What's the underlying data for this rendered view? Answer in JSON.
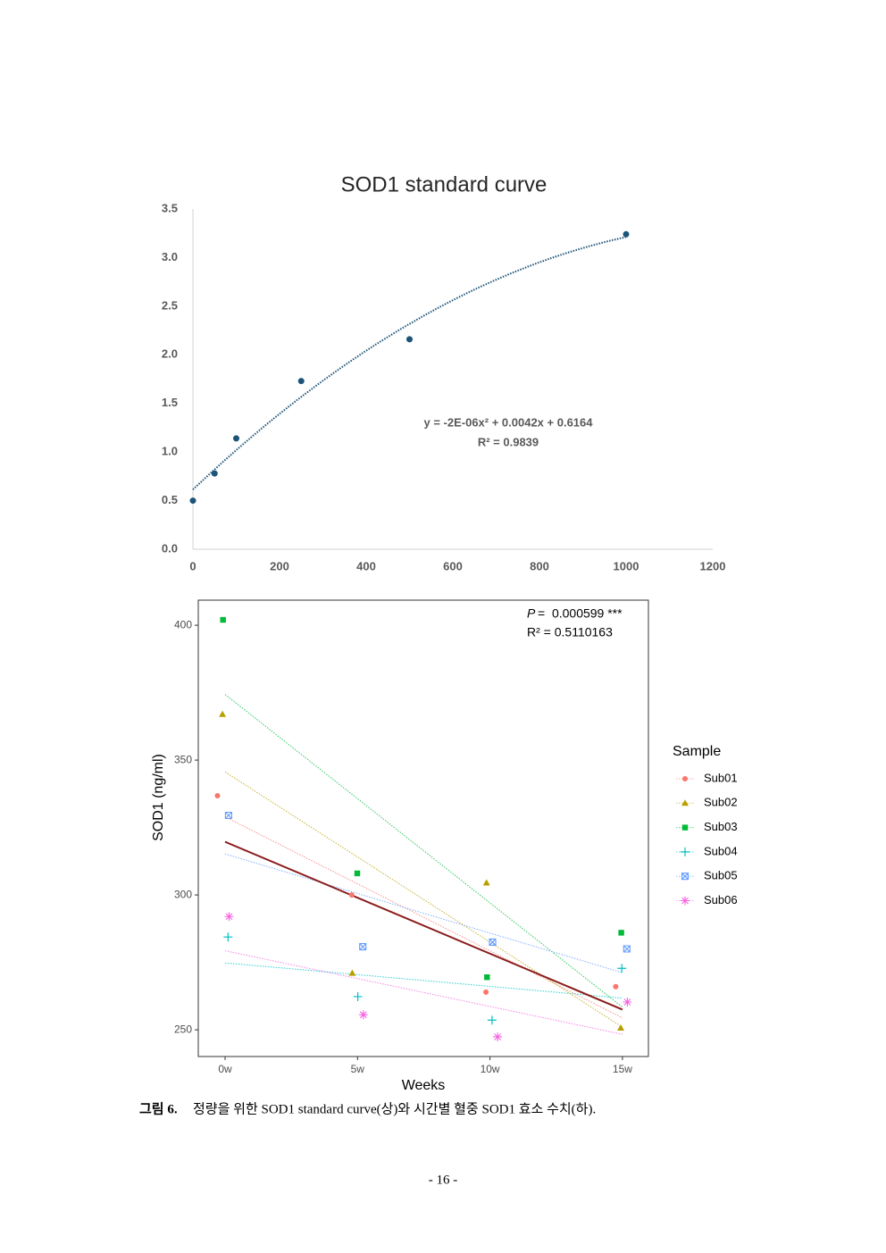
{
  "chart_data": [
    {
      "type": "scatter",
      "title": "SOD1 standard curve",
      "x": [
        0,
        50,
        100,
        250,
        500,
        1000
      ],
      "values": [
        0.5,
        0.78,
        1.14,
        1.73,
        2.16,
        3.24
      ],
      "color": "#1c5478",
      "trendline": {
        "type": "polynomial",
        "order": 2
      },
      "xlim": [
        0,
        1200
      ],
      "xticks": [
        0,
        200,
        400,
        600,
        800,
        1000,
        1200
      ],
      "ylim": [
        0,
        3.5
      ],
      "yticks": [
        {
          "value": 0,
          "label": "0.0"
        },
        0.5,
        {
          "value": 1,
          "label": "1.0"
        },
        1.5,
        {
          "value": 2,
          "label": "2.0"
        },
        2.5,
        {
          "value": 3,
          "label": "3.0"
        },
        3.5
      ],
      "annotations": [
        "y = -2E-06x² + 0.0042x + 0.6164",
        "R² = 0.9839"
      ]
    },
    {
      "type": "scatter-categorical",
      "x_label": "Weeks",
      "y_label": "SOD1 (ng/ml)",
      "categories": [
        "0w",
        "5w",
        "10w",
        "15w"
      ],
      "ylim": [
        240.1,
        409.3
      ],
      "yticks": [
        250,
        300,
        350,
        400
      ],
      "legend_title": "Sample",
      "legend": "right",
      "series": [
        {
          "name": "Sub01",
          "color": "#f8766d",
          "shape": "circle",
          "values": [
            336.8,
            300.0,
            264.0,
            266.0
          ]
        },
        {
          "name": "Sub02",
          "color": "#b79f00",
          "shape": "triangle",
          "values": [
            367.0,
            271.0,
            304.5,
            250.7
          ]
        },
        {
          "name": "Sub03",
          "color": "#00ba38",
          "shape": "square",
          "values": [
            402.0,
            308.0,
            269.5,
            286.0
          ]
        },
        {
          "name": "Sub04",
          "color": "#00bfc4",
          "shape": "plus",
          "values": [
            284.4,
            262.3,
            253.6,
            272.8
          ]
        },
        {
          "name": "Sub05",
          "color": "#619cff",
          "shape": "boxed-x",
          "values": [
            329.5,
            280.8,
            282.5,
            280.0
          ]
        },
        {
          "name": "Sub06",
          "color": "#f564e3",
          "shape": "asterisk",
          "values": [
            292.0,
            255.6,
            247.4,
            260.3
          ]
        }
      ],
      "fit_color": "#8b1c1c",
      "annotations": [
        "P",
        "=  0.000599 ***",
        "R² = 0.5110163"
      ]
    }
  ],
  "caption_label": "그림 6.",
  "caption_text": "정량을 위한 SOD1 standard curve(상)와 시간별 혈중 SOD1 효소 수치(하).",
  "page_number": "- 16 -"
}
